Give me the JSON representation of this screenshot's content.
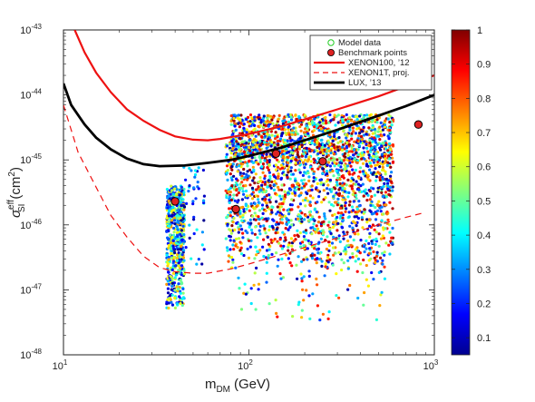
{
  "chart_data": {
    "type": "scatter",
    "xscale": "log",
    "yscale": "log",
    "xlim": [
      10,
      1000
    ],
    "ylim": [
      1e-48,
      1e-43
    ],
    "xlabel_main": "m",
    "xlabel_sub": "DM",
    "xlabel_unit": "(GeV)",
    "ylabel_main": "σ",
    "ylabel_sup": "eff",
    "ylabel_sub": "SI",
    "ylabel_unit_base": "(cm",
    "ylabel_unit_exp": "2",
    "ylabel_unit_close": ")",
    "x_ticks": [
      {
        "value": 10,
        "base": "10",
        "exp": "1"
      },
      {
        "value": 100,
        "base": "10",
        "exp": "2"
      },
      {
        "value": 1000,
        "base": "10",
        "exp": "3"
      }
    ],
    "y_ticks": [
      {
        "value": 1e-43,
        "base": "10",
        "exp": "-43"
      },
      {
        "value": 1e-44,
        "base": "10",
        "exp": "-44"
      },
      {
        "value": 1e-45,
        "base": "10",
        "exp": "-45"
      },
      {
        "value": 1e-46,
        "base": "10",
        "exp": "-46"
      },
      {
        "value": 1e-47,
        "base": "10",
        "exp": "-47"
      },
      {
        "value": 1e-48,
        "base": "10",
        "exp": "-48"
      }
    ],
    "legend": {
      "placement": "top-right",
      "entries": [
        {
          "label": "Model data",
          "kind": "open-circle",
          "color": "#22cc22"
        },
        {
          "label": "Benchmark points",
          "kind": "filled-circle",
          "color": "#dd2222"
        },
        {
          "label": "XENON100, ’12",
          "kind": "solid-line",
          "color": "#ee1111"
        },
        {
          "label": "XENON1T, proj.",
          "kind": "dashed-line",
          "color": "#ee1111"
        },
        {
          "label": "LUX, ’13",
          "kind": "thick-line",
          "color": "#000000"
        }
      ]
    },
    "colorbar": {
      "range": [
        0.05,
        1.0
      ],
      "ticks": [
        "0.1",
        "0.2",
        "0.3",
        "0.4",
        "0.5",
        "0.6",
        "0.7",
        "0.8",
        "0.9",
        "1"
      ],
      "colormap": "jet"
    },
    "series": [
      {
        "name": "XENON100, ’12",
        "style": "solid",
        "color": "#ee1111",
        "points": [
          [
            11.5,
            1e-43
          ],
          [
            13,
            4.5e-44
          ],
          [
            15,
            2.2e-44
          ],
          [
            18,
            1.1e-44
          ],
          [
            22,
            6e-45
          ],
          [
            27,
            4e-45
          ],
          [
            33,
            2.9e-45
          ],
          [
            40,
            2.3e-45
          ],
          [
            50,
            2.05e-45
          ],
          [
            60,
            2e-45
          ],
          [
            70,
            2.1e-45
          ],
          [
            100,
            2.5e-45
          ],
          [
            150,
            3.3e-45
          ],
          [
            200,
            4.2e-45
          ],
          [
            300,
            6e-45
          ],
          [
            500,
            9.5e-45
          ],
          [
            700,
            1.35e-44
          ],
          [
            1000,
            2e-44
          ]
        ]
      },
      {
        "name": "XENON1T, proj.",
        "style": "dashed",
        "color": "#ee1111",
        "points": [
          [
            10,
            7e-45
          ],
          [
            12,
            1.3e-45
          ],
          [
            15,
            3.8e-46
          ],
          [
            18,
            1.4e-46
          ],
          [
            22,
            6.5e-47
          ],
          [
            27,
            3.3e-47
          ],
          [
            33,
            2.2e-47
          ],
          [
            40,
            1.9e-47
          ],
          [
            50,
            1.8e-47
          ],
          [
            60,
            1.8e-47
          ],
          [
            80,
            2.1e-47
          ],
          [
            100,
            2.5e-47
          ],
          [
            150,
            3.5e-47
          ],
          [
            200,
            4.5e-47
          ],
          [
            300,
            6.3e-47
          ],
          [
            500,
            1e-46
          ],
          [
            700,
            1.3e-46
          ],
          [
            850,
            1.5e-46
          ]
        ]
      },
      {
        "name": "LUX, ’13",
        "style": "thick",
        "color": "#000000",
        "points": [
          [
            10,
            1.5e-44
          ],
          [
            11,
            7e-45
          ],
          [
            13,
            3.5e-45
          ],
          [
            15,
            2.2e-45
          ],
          [
            18,
            1.45e-45
          ],
          [
            22,
            1.05e-45
          ],
          [
            27,
            8.6e-46
          ],
          [
            33,
            8e-46
          ],
          [
            45,
            8.2e-46
          ],
          [
            60,
            9e-46
          ],
          [
            80,
            1e-45
          ],
          [
            100,
            1.15e-45
          ],
          [
            150,
            1.55e-45
          ],
          [
            200,
            2e-45
          ],
          [
            300,
            2.9e-45
          ],
          [
            500,
            4.8e-45
          ],
          [
            700,
            6.7e-45
          ],
          [
            1000,
            1e-44
          ]
        ]
      }
    ],
    "benchmark_points": [
      {
        "x": 40,
        "y": 2.3e-46
      },
      {
        "x": 85,
        "y": 1.75e-46
      },
      {
        "x": 140,
        "y": 1.25e-45
      },
      {
        "x": 250,
        "y": 9.5e-46
      },
      {
        "x": 820,
        "y": 3.5e-45
      }
    ],
    "model_clusters": [
      {
        "xmin": 36,
        "xmax": 45,
        "ymin": 5e-48,
        "ymax": 4e-46,
        "n": 560,
        "zmin": 0.05,
        "zmax": 0.75
      },
      {
        "xmin": 44,
        "xmax": 58,
        "ymin": 2e-47,
        "ymax": 8e-46,
        "n": 45,
        "zmin": 0.05,
        "zmax": 0.45
      },
      {
        "xmin": 75,
        "xmax": 600,
        "ymin": 2e-47,
        "ymax": 2e-45,
        "n": 1700,
        "zmin": 0.05,
        "zmax": 1.0
      },
      {
        "xmin": 85,
        "xmax": 550,
        "ymin": 3e-48,
        "ymax": 2e-47,
        "n": 70,
        "zmin": 0.05,
        "zmax": 0.9
      },
      {
        "xmin": 80,
        "xmax": 600,
        "ymin": 8e-46,
        "ymax": 5e-45,
        "n": 900,
        "zmin": 0.05,
        "zmax": 1.0
      }
    ]
  }
}
